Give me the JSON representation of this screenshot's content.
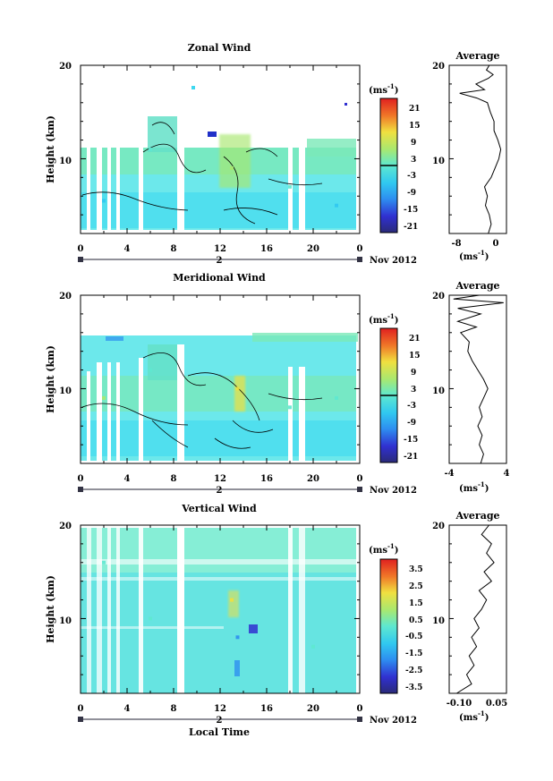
{
  "chart_data": [
    {
      "type": "heatmap",
      "title": "Zonal Wind",
      "ylabel": "Height (km)",
      "x_ticks": [
        "0",
        "4",
        "8",
        "12",
        "16",
        "20",
        "0"
      ],
      "xlim": [
        0,
        24
      ],
      "y_ticks": [
        "10",
        "20"
      ],
      "ylim": [
        2,
        20
      ],
      "date_day": "2",
      "date_label": "Nov 2012",
      "colorbar": {
        "unit": "(ms",
        "unit_exp": "-1",
        "unit_close": ")",
        "ticks": [
          "21",
          "15",
          "9",
          "3",
          "-3",
          "-9",
          "-15",
          "-21"
        ],
        "range": [
          -24,
          24
        ]
      },
      "average": {
        "title": "Average",
        "x_ticks": [
          "-8",
          "0"
        ],
        "xlim": [
          -10,
          2
        ],
        "unit": "(ms",
        "unit_exp": "-1",
        "unit_close": ")",
        "profile": [
          {
            "h": 2.0,
            "v": -1.8
          },
          {
            "h": 3.0,
            "v": -1.2
          },
          {
            "h": 4.0,
            "v": -1.6
          },
          {
            "h": 5.0,
            "v": -2.4
          },
          {
            "h": 6.0,
            "v": -2.0
          },
          {
            "h": 7.0,
            "v": -2.6
          },
          {
            "h": 8.0,
            "v": -1.2
          },
          {
            "h": 9.0,
            "v": -0.4
          },
          {
            "h": 10.0,
            "v": 0.4
          },
          {
            "h": 11.0,
            "v": 0.8
          },
          {
            "h": 12.0,
            "v": 0.2
          },
          {
            "h": 13.0,
            "v": -0.6
          },
          {
            "h": 14.0,
            "v": -0.6
          },
          {
            "h": 15.0,
            "v": -1.4
          },
          {
            "h": 16.0,
            "v": -2.0
          },
          {
            "h": 16.5,
            "v": -4.2
          },
          {
            "h": 17.0,
            "v": -7.8
          },
          {
            "h": 17.4,
            "v": -2.6
          },
          {
            "h": 18.0,
            "v": -4.4
          },
          {
            "h": 18.6,
            "v": -1.8
          },
          {
            "h": 19.0,
            "v": -0.8
          },
          {
            "h": 19.5,
            "v": -2.2
          },
          {
            "h": 20.0,
            "v": -1.6
          }
        ]
      },
      "sample_points": [
        {
          "t": 2.0,
          "h": 5.5,
          "v": -6
        },
        {
          "t": 6.0,
          "h": 11.0,
          "v": 2
        },
        {
          "t": 13.0,
          "h": 9.0,
          "v": 8
        },
        {
          "t": 18.0,
          "h": 7.0,
          "v": -3
        },
        {
          "t": 22.0,
          "h": 5.0,
          "v": -4
        }
      ]
    },
    {
      "type": "heatmap",
      "title": "Meridional Wind",
      "ylabel": "Height (km)",
      "x_ticks": [
        "0",
        "4",
        "8",
        "12",
        "16",
        "20",
        "0"
      ],
      "xlim": [
        0,
        24
      ],
      "y_ticks": [
        "10",
        "20"
      ],
      "ylim": [
        2,
        20
      ],
      "date_day": "2",
      "date_label": "Nov 2012",
      "colorbar": {
        "unit": "(ms",
        "unit_exp": "-1",
        "unit_close": ")",
        "ticks": [
          "21",
          "15",
          "9",
          "3",
          "-3",
          "-9",
          "-15",
          "-21"
        ],
        "range": [
          -24,
          24
        ]
      },
      "average": {
        "title": "Average",
        "x_ticks": [
          "-4",
          "4"
        ],
        "xlim": [
          -4,
          4
        ],
        "unit": "(ms",
        "unit_exp": "-1",
        "unit_close": ")",
        "profile": [
          {
            "h": 2.0,
            "v": 0.4
          },
          {
            "h": 3.0,
            "v": 0.8
          },
          {
            "h": 4.0,
            "v": 0.2
          },
          {
            "h": 5.0,
            "v": 0.6
          },
          {
            "h": 6.0,
            "v": 0.0
          },
          {
            "h": 7.0,
            "v": 0.6
          },
          {
            "h": 8.0,
            "v": 0.2
          },
          {
            "h": 9.0,
            "v": 0.8
          },
          {
            "h": 10.0,
            "v": 1.4
          },
          {
            "h": 11.0,
            "v": 0.8
          },
          {
            "h": 12.0,
            "v": 0.0
          },
          {
            "h": 13.0,
            "v": -0.8
          },
          {
            "h": 14.0,
            "v": -1.4
          },
          {
            "h": 15.0,
            "v": -1.2
          },
          {
            "h": 16.0,
            "v": -2.4
          },
          {
            "h": 16.6,
            "v": -0.2
          },
          {
            "h": 17.2,
            "v": -2.8
          },
          {
            "h": 18.0,
            "v": 0.4
          },
          {
            "h": 18.6,
            "v": -2.8
          },
          {
            "h": 19.2,
            "v": 3.6
          },
          {
            "h": 19.6,
            "v": -3.4
          },
          {
            "h": 20.0,
            "v": 0.2
          }
        ]
      },
      "sample_points": [
        {
          "t": 2.0,
          "h": 9.0,
          "v": 3
        },
        {
          "t": 6.0,
          "h": 12.0,
          "v": -3
        },
        {
          "t": 13.5,
          "h": 10.0,
          "v": 9
        },
        {
          "t": 18.0,
          "h": 8.0,
          "v": -2
        },
        {
          "t": 22.0,
          "h": 9.0,
          "v": 2
        }
      ]
    },
    {
      "type": "heatmap",
      "title": "Vertical Wind",
      "ylabel": "Height (km)",
      "xlabel": "Local Time",
      "x_ticks": [
        "0",
        "4",
        "8",
        "12",
        "16",
        "20",
        "0"
      ],
      "xlim": [
        0,
        24
      ],
      "y_ticks": [
        "10",
        "20"
      ],
      "ylim": [
        2,
        20
      ],
      "date_day": "2",
      "date_label": "Nov 2012",
      "colorbar": {
        "unit": "(ms",
        "unit_exp": "-1",
        "unit_close": ")",
        "ticks": [
          "3.5",
          "2.5",
          "1.5",
          "0.5",
          "-0.5",
          "-1.5",
          "-2.5",
          "-3.5"
        ],
        "range": [
          -4,
          4
        ]
      },
      "average": {
        "title": "Average",
        "x_ticks": [
          "-0.10",
          "0.05"
        ],
        "xlim": [
          -0.15,
          0.08
        ],
        "unit": "(ms",
        "unit_exp": "-1",
        "unit_close": ")",
        "profile": [
          {
            "h": 2.0,
            "v": -0.12
          },
          {
            "h": 3.0,
            "v": -0.06
          },
          {
            "h": 4.0,
            "v": -0.08
          },
          {
            "h": 5.0,
            "v": -0.05
          },
          {
            "h": 6.0,
            "v": -0.07
          },
          {
            "h": 7.0,
            "v": -0.04
          },
          {
            "h": 8.0,
            "v": -0.06
          },
          {
            "h": 9.0,
            "v": -0.03
          },
          {
            "h": 10.0,
            "v": -0.05
          },
          {
            "h": 11.0,
            "v": -0.02
          },
          {
            "h": 12.0,
            "v": 0.0
          },
          {
            "h": 13.0,
            "v": -0.03
          },
          {
            "h": 14.0,
            "v": 0.02
          },
          {
            "h": 15.0,
            "v": -0.01
          },
          {
            "h": 16.0,
            "v": 0.03
          },
          {
            "h": 17.0,
            "v": 0.0
          },
          {
            "h": 18.0,
            "v": 0.02
          },
          {
            "h": 19.0,
            "v": -0.02
          },
          {
            "h": 20.0,
            "v": 0.01
          }
        ]
      },
      "sample_points": [
        {
          "t": 2.0,
          "h": 16.0,
          "v": -0.5
        },
        {
          "t": 6.0,
          "h": 10.0,
          "v": 0.2
        },
        {
          "t": 13.0,
          "h": 12.0,
          "v": 1.5
        },
        {
          "t": 13.5,
          "h": 8.0,
          "v": -2.5
        },
        {
          "t": 20.0,
          "h": 7.0,
          "v": 0.0
        }
      ]
    }
  ]
}
